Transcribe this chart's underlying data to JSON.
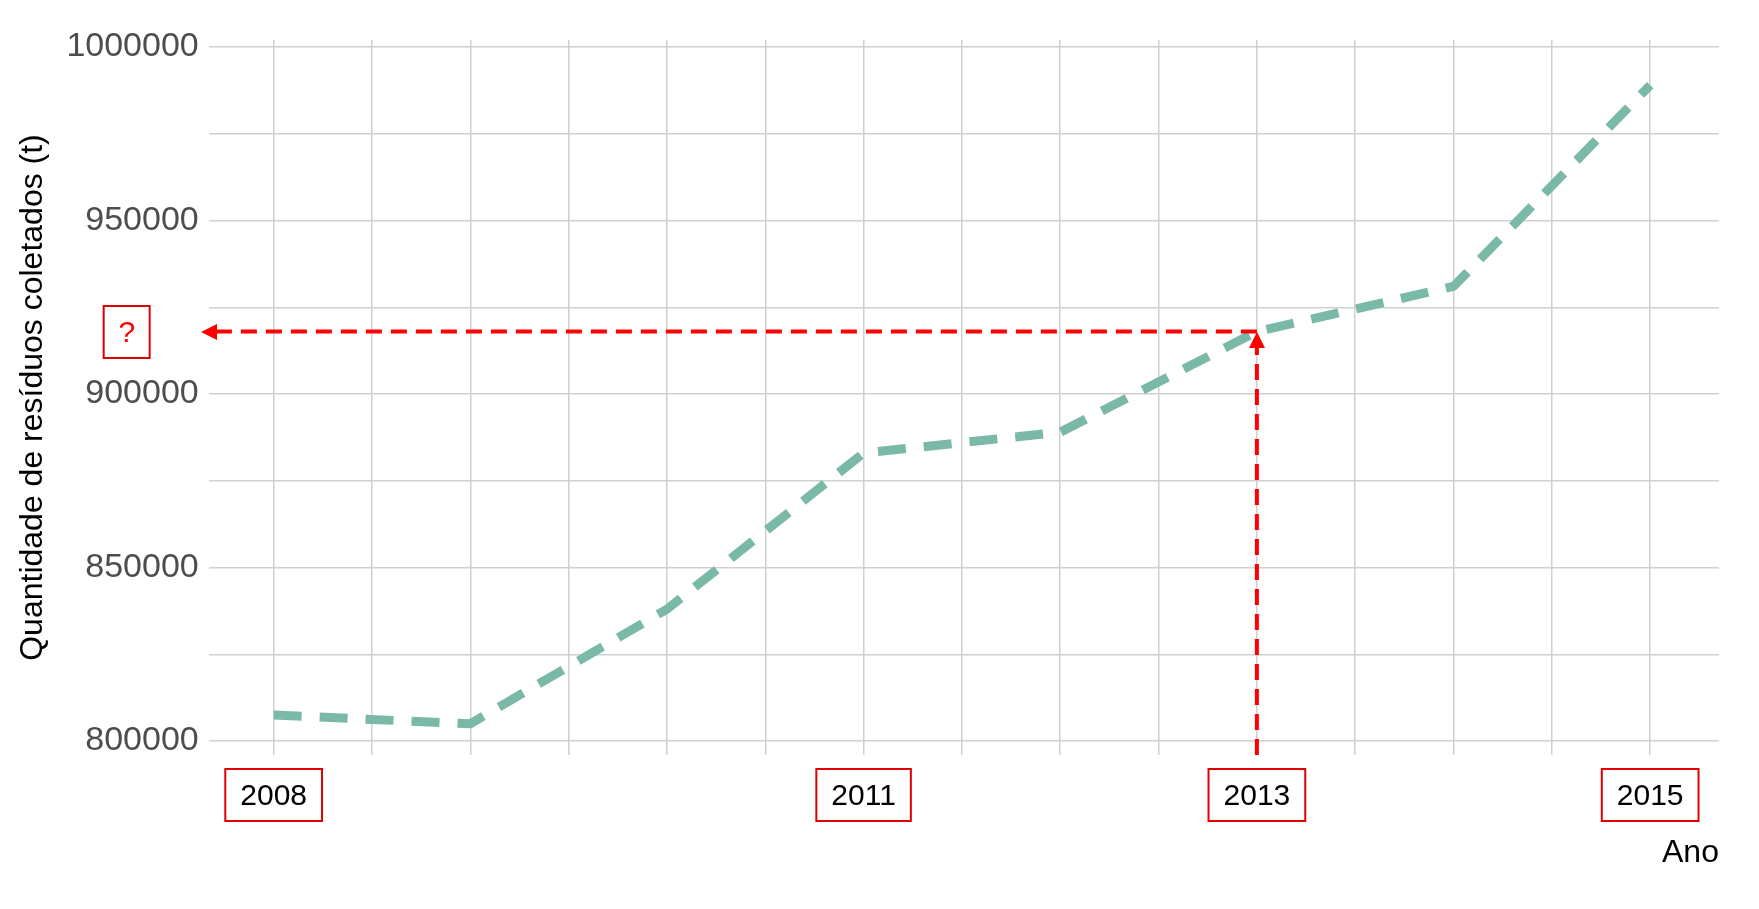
{
  "chart_data": {
    "type": "line",
    "ylabel": "Quantidade de resíduos coletados (t)",
    "xlabel": "Ano",
    "x": [
      2008,
      2009,
      2010,
      2011,
      2012,
      2013,
      2014,
      2015
    ],
    "series": [
      {
        "color": "#7ab8a8",
        "values": [
          807500,
          805000,
          838000,
          883000,
          889000,
          918000,
          931000,
          989000
        ]
      }
    ],
    "xlim": [
      2007.67,
      2015.35
    ],
    "xticks": [
      2008,
      {
        "value": 2008.5,
        "label": null
      },
      {
        "value": 2009,
        "label": null
      },
      {
        "value": 2009.5,
        "label": null
      },
      {
        "value": 2010,
        "label": null
      },
      {
        "value": 2010.5,
        "label": null
      },
      2011,
      {
        "value": 2011.5,
        "label": null
      },
      {
        "value": 2012,
        "label": null
      },
      {
        "value": 2012.5,
        "label": null
      },
      2013,
      {
        "value": 2013.5,
        "label": null
      },
      {
        "value": 2014,
        "label": null
      },
      {
        "value": 2014.5,
        "label": null
      },
      2015
    ],
    "ylim": [
      796000,
      1002000
    ],
    "yticks": [
      800000,
      {
        "value": 825000,
        "label": null
      },
      850000,
      {
        "value": 875000,
        "label": null
      },
      900000,
      {
        "value": 925000,
        "label": null
      },
      950000,
      {
        "value": 975000,
        "label": null
      },
      1000000
    ],
    "grid": true,
    "line_style": "dashed",
    "marker": "none",
    "legend": false,
    "ref_lines": [
      {
        "axis": "x",
        "value": 2013,
        "color": "#ff0000",
        "line_style": "dashed"
      },
      {
        "axis": "y",
        "value": 918000,
        "color": "#ff0000",
        "line_style": "dashed"
      }
    ],
    "annotations": [
      "?"
    ]
  }
}
